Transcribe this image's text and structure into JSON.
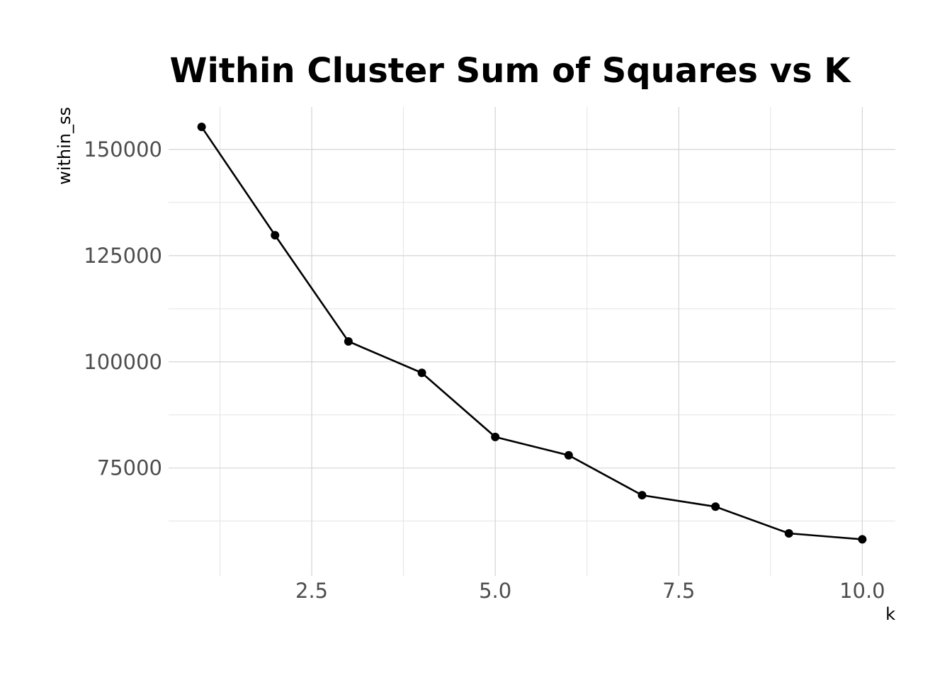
{
  "chart_data": {
    "type": "line",
    "title": "Within Cluster Sum of Squares vs K",
    "xlabel": "k",
    "ylabel": "within_ss",
    "x": [
      1,
      2,
      3,
      4,
      5,
      6,
      7,
      8,
      9,
      10
    ],
    "series": [
      {
        "values": [
          155300,
          129800,
          104800,
          97400,
          82300,
          78000,
          68600,
          65900,
          59600,
          58200
        ]
      }
    ],
    "xlim": [
      0.55,
      10.45
    ],
    "ylim": [
      49600,
      160000
    ],
    "x_ticks": [
      {
        "value": 2.5,
        "label": "2.5"
      },
      {
        "value": 5.0,
        "label": "5.0"
      },
      {
        "value": 7.5,
        "label": "7.5"
      },
      {
        "value": 10.0,
        "label": "10.0"
      }
    ],
    "x_minor_ticks": [
      1.25,
      3.75,
      6.25,
      8.75
    ],
    "y_ticks": [
      {
        "value": 75000,
        "label": "75000"
      },
      {
        "value": 100000,
        "label": "100000"
      },
      {
        "value": 125000,
        "label": "125000"
      },
      {
        "value": 150000,
        "label": "150000"
      }
    ],
    "y_minor_ticks": [
      62500,
      87500,
      112500,
      137500
    ],
    "grid": true,
    "markers": true,
    "colors": {
      "line": "#000000",
      "points": "#000000",
      "grid": "#d4d4d4"
    }
  }
}
